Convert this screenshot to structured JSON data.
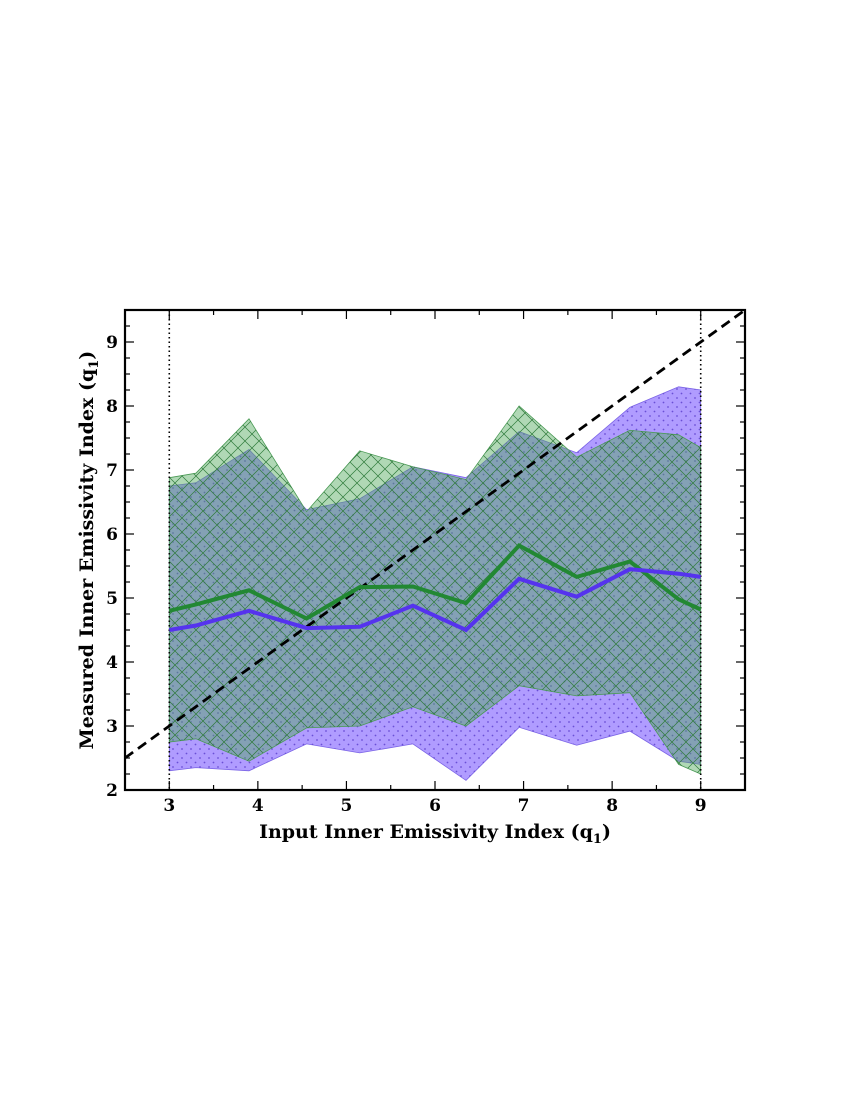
{
  "chart_data": {
    "type": "area",
    "title": "",
    "xlabel": "Input Inner Emissivity Index (q",
    "xlabel_sub": "1",
    "xlabel_end": ")",
    "ylabel": "Measured Inner Emissivity Index (q",
    "ylabel_sub": "1",
    "ylabel_end": ")",
    "xlim": [
      2.5,
      9.5
    ],
    "ylim": [
      2,
      9.5
    ],
    "xticks": [
      3,
      4,
      5,
      6,
      7,
      8,
      9
    ],
    "yticks": [
      2,
      3,
      4,
      5,
      6,
      7,
      8,
      9
    ],
    "xtick_labels": [
      "3",
      "4",
      "5",
      "6",
      "7",
      "8",
      "9"
    ],
    "ytick_labels": [
      "2",
      "3",
      "4",
      "5",
      "6",
      "7",
      "8",
      "9"
    ],
    "vertical_lines": [
      3,
      9
    ],
    "reference_line": {
      "name": "one-to-one",
      "x": [
        2.5,
        9.5
      ],
      "y": [
        2.5,
        9.5
      ],
      "color": "#000000",
      "style": "dashed"
    },
    "x": [
      3.0,
      3.3,
      3.9,
      4.55,
      5.15,
      5.75,
      6.35,
      6.95,
      7.6,
      8.2,
      8.75,
      9.0
    ],
    "series": [
      {
        "name": "blue",
        "color": "#5533ee",
        "fill": "#9f86ff",
        "values": [
          4.5,
          4.57,
          4.8,
          4.53,
          4.55,
          4.88,
          4.5,
          5.3,
          5.02,
          5.45,
          5.38,
          5.33
        ],
        "upper": [
          6.75,
          6.8,
          7.32,
          6.38,
          6.55,
          7.05,
          6.88,
          7.6,
          7.27,
          7.98,
          8.3,
          8.25
        ],
        "lower": [
          2.3,
          2.35,
          2.3,
          2.72,
          2.58,
          2.72,
          2.15,
          2.98,
          2.7,
          2.92,
          2.45,
          2.4
        ]
      },
      {
        "name": "green",
        "color": "#228833",
        "fill": "#4fa85a",
        "values": [
          4.8,
          4.9,
          5.12,
          4.68,
          5.17,
          5.18,
          4.92,
          5.82,
          5.33,
          5.57,
          4.98,
          4.82
        ],
        "upper": [
          6.88,
          6.95,
          7.8,
          6.35,
          7.3,
          7.05,
          6.85,
          8.0,
          7.2,
          7.62,
          7.55,
          7.35
        ],
        "lower": [
          2.75,
          2.8,
          2.45,
          2.97,
          3.0,
          3.3,
          3.0,
          3.63,
          3.47,
          3.52,
          2.4,
          2.25
        ]
      }
    ]
  }
}
